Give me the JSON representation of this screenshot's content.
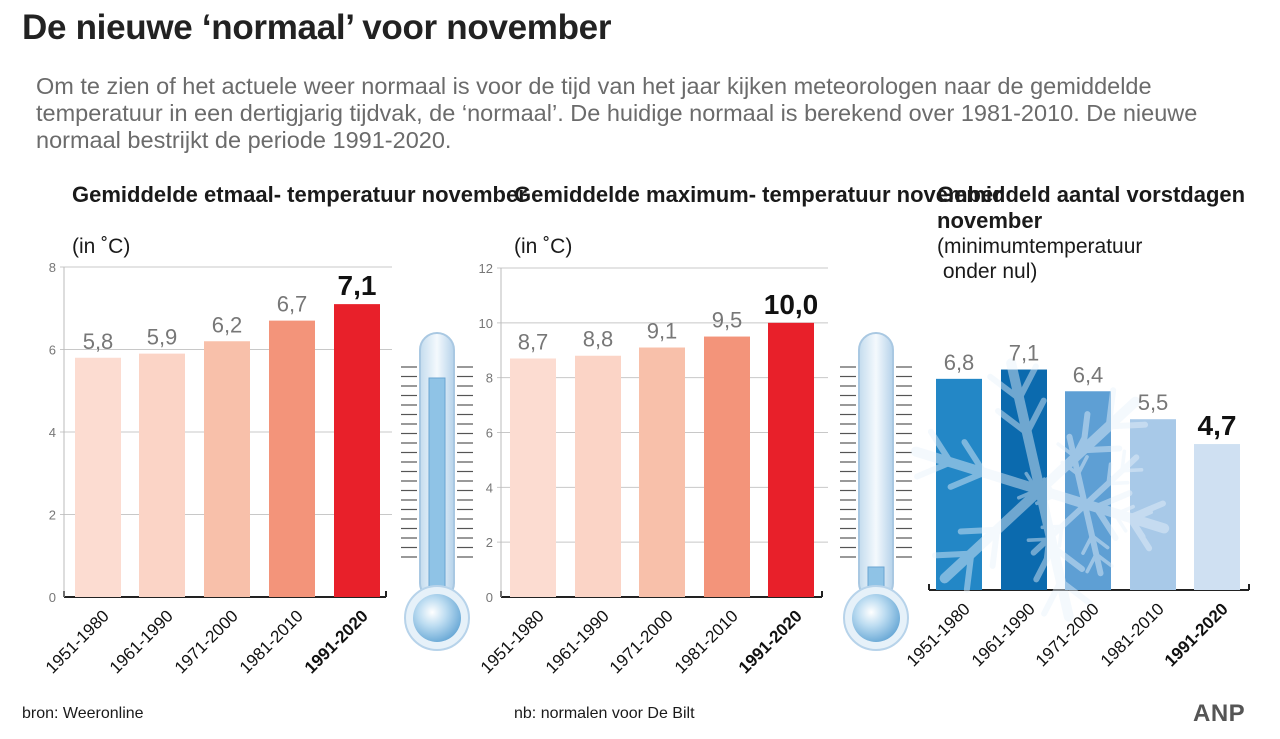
{
  "headline": "De nieuwe ‘normaal’ voor november",
  "intro": "Om te zien of het actuele weer normaal is voor de tijd van het jaar kijken meteorologen naar de gemiddelde temperatuur in een dertigjarig tijdvak, de ‘normaal’. De huidige normaal is berekend over 1981-2010. De nieuwe normaal bestrijkt de periode 1991-2020.",
  "footer": {
    "source": "bron:  Weeronline",
    "note": "nb: normalen voor De Bilt",
    "brand": "ANP"
  },
  "icons": [
    "thermometer-icon",
    "thermometer-icon",
    "snowflake-icon"
  ],
  "colors": {
    "warm": [
      "#fcdcd1",
      "#fbd4c6",
      "#f8c0aa",
      "#f3947a",
      "#e8202a"
    ],
    "cold": [
      "#2387c6",
      "#0b6aae",
      "#5e9fd4",
      "#a8c9e8",
      "#cfe0f2"
    ],
    "thermo_fill": "#8fc3e6",
    "thermo_glass": "#dcebf6"
  },
  "chart_data": [
    {
      "type": "bar",
      "title": "Gemiddelde etmaal-\ntemperatuur november",
      "subtitle": "(in ˚C)",
      "categories": [
        "1951-1980",
        "1961-1990",
        "1971-2000",
        "1981-2010",
        "1991-2020"
      ],
      "values": [
        5.8,
        5.9,
        6.2,
        6.7,
        7.1
      ],
      "value_labels": [
        "5,8",
        "5,9",
        "6,2",
        "6,7",
        "7,1"
      ],
      "highlight_index": 4,
      "ylim": [
        0,
        8
      ],
      "yticks": [
        0,
        2,
        4,
        6,
        8
      ],
      "grid": true
    },
    {
      "type": "bar",
      "title": "Gemiddelde maximum-\ntemperatuur november",
      "subtitle": "(in ˚C)",
      "categories": [
        "1951-1980",
        "1961-1990",
        "1971-2000",
        "1981-2010",
        "1991-2020"
      ],
      "values": [
        8.7,
        8.8,
        9.1,
        9.5,
        10.0
      ],
      "value_labels": [
        "8,7",
        "8,8",
        "9,1",
        "9,5",
        "10,0"
      ],
      "highlight_index": 4,
      "ylim": [
        0,
        12
      ],
      "yticks": [
        0,
        2,
        4,
        6,
        8,
        10,
        12
      ],
      "grid": true
    },
    {
      "type": "bar",
      "title": "Gemiddeld aantal\nvorstdagen november",
      "subtitle": "(minimumtemperatuur\n onder nul)",
      "categories": [
        "1951-1980",
        "1961-1990",
        "1971-2000",
        "1981-2010",
        "1991-2020"
      ],
      "values": [
        6.8,
        7.1,
        6.4,
        5.5,
        4.7
      ],
      "value_labels": [
        "6,8",
        "7,1",
        "6,4",
        "5,5",
        "4,7"
      ],
      "highlight_index": 4,
      "ylim": [
        0,
        9.5
      ],
      "yticks": [],
      "grid": false
    }
  ]
}
